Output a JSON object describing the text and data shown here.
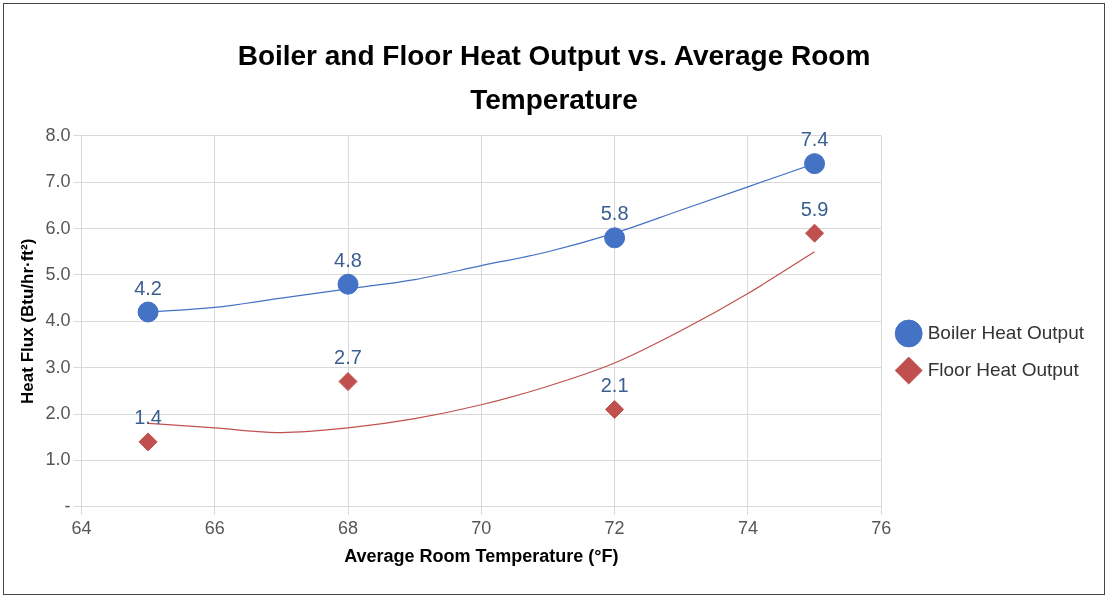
{
  "chart_data": {
    "type": "scatter",
    "title": "Boiler and Floor Heat Output vs. Average Room Temperature",
    "xlabel": "Average Room Temperature (°F)",
    "ylabel": "Heat Flux (Btu/hr·ft²)",
    "xlim": [
      64,
      76
    ],
    "xticks": [
      64,
      66,
      68,
      70,
      72,
      74,
      76
    ],
    "ylim": [
      0,
      8
    ],
    "yticks": [
      {
        "value": 0,
        "label": "-"
      },
      {
        "value": 1,
        "label": "1.0"
      },
      {
        "value": 2,
        "label": "2.0"
      },
      {
        "value": 3,
        "label": "3.0"
      },
      {
        "value": 4,
        "label": "4.0"
      },
      {
        "value": 5,
        "label": "5.0"
      },
      {
        "value": 6,
        "label": "6.0"
      },
      {
        "value": 7,
        "label": "7.0"
      },
      {
        "value": 8,
        "label": "8.0"
      }
    ],
    "grid": true,
    "legend": "right",
    "series": [
      {
        "name": "Boiler Heat Output",
        "marker": "circle",
        "color": "#4472c4",
        "x": [
          65,
          68,
          72,
          75
        ],
        "values": [
          4.2,
          4.8,
          5.8,
          7.4
        ],
        "value_labels": [
          "4.2",
          "4.8",
          "5.8",
          "7.4"
        ]
      },
      {
        "name": "Floor Heat Output",
        "marker": "diamond",
        "color": "#c0504d",
        "x": [
          65,
          68,
          72,
          75
        ],
        "values": [
          1.4,
          2.7,
          2.1,
          5.9
        ],
        "value_labels": [
          "1.4",
          "2.7",
          "2.1",
          "5.9"
        ]
      },
      {
        "type": "line",
        "marker": "none",
        "color": "#4472c4",
        "x": [
          65,
          66,
          67,
          68,
          69,
          70,
          71,
          72,
          73,
          74,
          75
        ],
        "values": [
          4.2,
          4.3,
          4.5,
          4.7,
          4.9,
          5.2,
          5.5,
          5.9,
          6.4,
          6.9,
          7.4
        ]
      },
      {
        "type": "line",
        "marker": "none",
        "color": "#c0504d",
        "x": [
          65,
          66,
          67,
          68,
          69,
          70,
          71,
          72,
          73,
          74,
          75
        ],
        "values": [
          1.8,
          1.7,
          1.6,
          1.7,
          1.9,
          2.2,
          2.6,
          3.1,
          3.8,
          4.6,
          5.5
        ]
      }
    ]
  }
}
